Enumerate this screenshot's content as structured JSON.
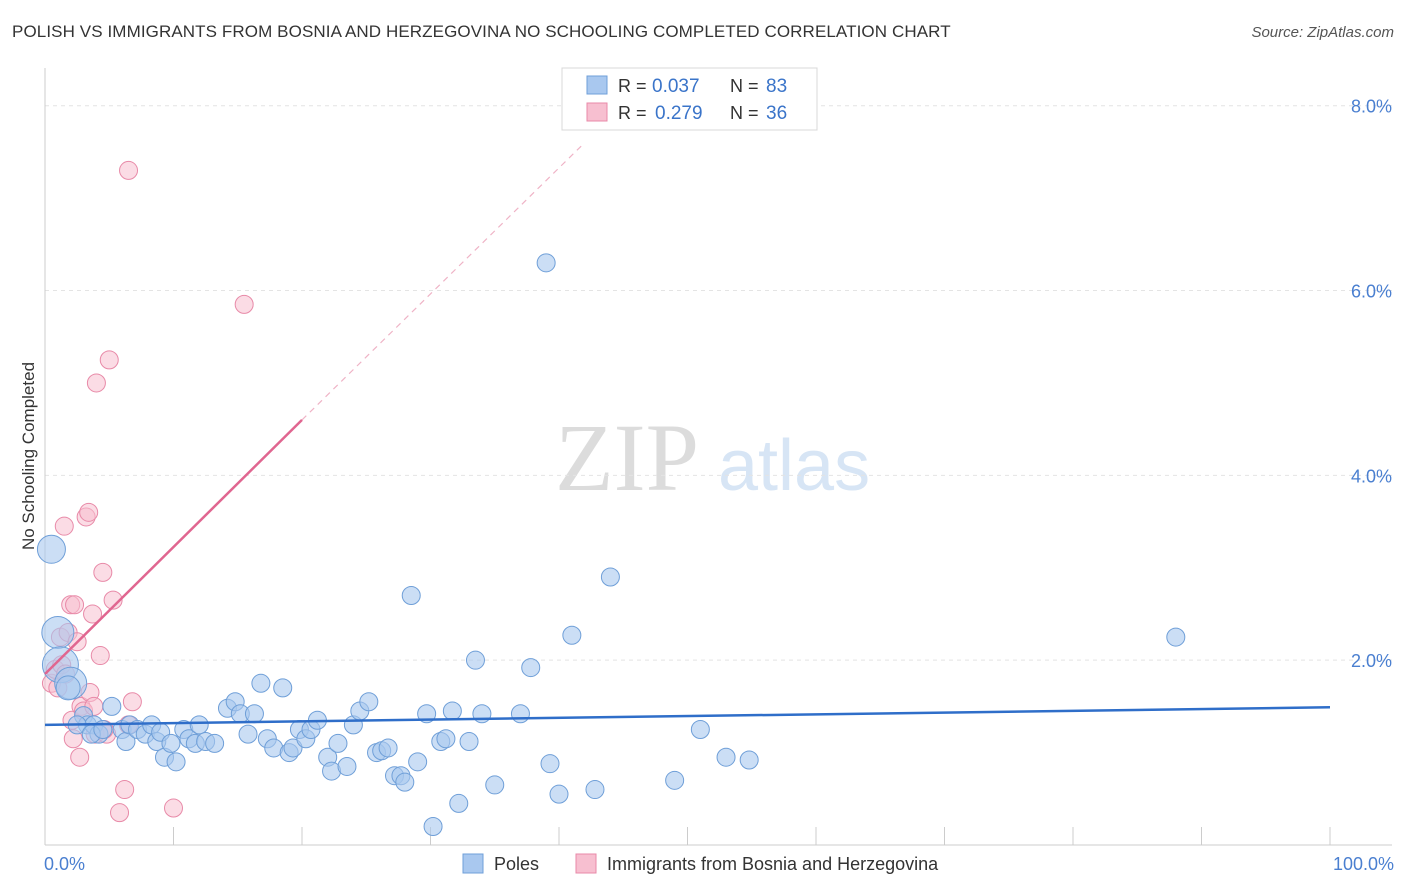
{
  "title": "POLISH VS IMMIGRANTS FROM BOSNIA AND HERZEGOVINA NO SCHOOLING COMPLETED CORRELATION CHART",
  "source": "Source: ZipAtlas.com",
  "watermark": {
    "zip": "ZIP",
    "atlas": "atlas"
  },
  "colors": {
    "blue_fill": "#a9c8ef",
    "blue_stroke": "#6f9fd8",
    "blue_line": "#2f6ec9",
    "pink_fill": "#f7bfd0",
    "pink_stroke": "#e88aa8",
    "pink_line": "#e06690",
    "axis_text": "#4a7fd0"
  },
  "legend_box": {
    "rows": [
      {
        "r_label": "R =",
        "r_value": "0.037",
        "n_label": "N =",
        "n_value": "83"
      },
      {
        "r_label": "R =",
        "r_value": "0.279",
        "n_label": "N =",
        "n_value": "36"
      }
    ]
  },
  "chart_data": {
    "type": "scatter",
    "xlabel": "",
    "ylabel": "No Schooling Completed",
    "xlim": [
      0,
      100
    ],
    "ylim": [
      0,
      8.3
    ],
    "x_tick_labels": [
      "0.0%",
      "100.0%"
    ],
    "y_ticks": [
      2,
      4,
      6,
      8
    ],
    "y_tick_labels": [
      "2.0%",
      "4.0%",
      "6.0%",
      "8.0%"
    ],
    "grid": true,
    "legend_position": "bottom",
    "series": [
      {
        "name": "Poles",
        "color": "#a9c8ef",
        "trend": {
          "x": [
            0,
            100
          ],
          "y": [
            1.3,
            1.49
          ]
        },
        "points": [
          [
            0.5,
            3.2,
            14
          ],
          [
            1.0,
            2.3,
            16
          ],
          [
            1.2,
            1.95,
            18
          ],
          [
            2.0,
            1.75,
            16
          ],
          [
            3.0,
            1.4,
            9
          ],
          [
            3.3,
            1.3,
            9
          ],
          [
            3.8,
            1.3,
            9
          ],
          [
            4.2,
            1.2,
            9
          ],
          [
            5.2,
            1.5,
            9
          ],
          [
            6.0,
            1.25,
            9
          ],
          [
            6.3,
            1.12,
            9
          ],
          [
            6.6,
            1.3,
            9
          ],
          [
            7.2,
            1.25,
            9
          ],
          [
            7.8,
            1.2,
            9
          ],
          [
            8.3,
            1.3,
            9
          ],
          [
            8.7,
            1.12,
            9
          ],
          [
            9.0,
            1.22,
            9
          ],
          [
            9.3,
            0.95,
            9
          ],
          [
            9.8,
            1.1,
            9
          ],
          [
            10.2,
            0.9,
            9
          ],
          [
            10.8,
            1.25,
            9
          ],
          [
            11.2,
            1.15,
            9
          ],
          [
            11.7,
            1.1,
            9
          ],
          [
            12.0,
            1.3,
            9
          ],
          [
            12.5,
            1.12,
            9
          ],
          [
            13.2,
            1.1,
            9
          ],
          [
            14.2,
            1.48,
            9
          ],
          [
            14.8,
            1.55,
            9
          ],
          [
            15.2,
            1.42,
            9
          ],
          [
            15.8,
            1.2,
            9
          ],
          [
            16.3,
            1.42,
            9
          ],
          [
            16.8,
            1.75,
            9
          ],
          [
            17.3,
            1.15,
            9
          ],
          [
            17.8,
            1.05,
            9
          ],
          [
            18.5,
            1.7,
            9
          ],
          [
            19.0,
            1.0,
            9
          ],
          [
            19.3,
            1.05,
            9
          ],
          [
            19.8,
            1.25,
            9
          ],
          [
            20.3,
            1.15,
            9
          ],
          [
            20.7,
            1.25,
            9
          ],
          [
            21.2,
            1.35,
            9
          ],
          [
            22.0,
            0.95,
            9
          ],
          [
            22.3,
            0.8,
            9
          ],
          [
            22.8,
            1.1,
            9
          ],
          [
            23.5,
            0.85,
            9
          ],
          [
            24.0,
            1.3,
            9
          ],
          [
            24.5,
            1.45,
            9
          ],
          [
            25.2,
            1.55,
            9
          ],
          [
            25.8,
            1.0,
            9
          ],
          [
            26.2,
            1.02,
            9
          ],
          [
            26.7,
            1.05,
            9
          ],
          [
            27.2,
            0.75,
            9
          ],
          [
            27.7,
            0.75,
            9
          ],
          [
            28.0,
            0.68,
            9
          ],
          [
            28.5,
            2.7,
            9
          ],
          [
            29.0,
            0.9,
            9
          ],
          [
            29.7,
            1.42,
            9
          ],
          [
            30.2,
            0.2,
            9
          ],
          [
            30.8,
            1.12,
            9
          ],
          [
            31.2,
            1.15,
            9
          ],
          [
            31.7,
            1.45,
            9
          ],
          [
            32.2,
            0.45,
            9
          ],
          [
            33.0,
            1.12,
            9
          ],
          [
            33.5,
            2.0,
            9
          ],
          [
            34.0,
            1.42,
            9
          ],
          [
            35.0,
            0.65,
            9
          ],
          [
            37.0,
            1.42,
            9
          ],
          [
            37.8,
            1.92,
            9
          ],
          [
            39.0,
            6.3,
            9
          ],
          [
            39.3,
            0.88,
            9
          ],
          [
            40.0,
            0.55,
            9
          ],
          [
            41.0,
            2.27,
            9
          ],
          [
            42.8,
            0.6,
            9
          ],
          [
            44.0,
            2.9,
            9
          ],
          [
            49.0,
            0.7,
            9
          ],
          [
            51.0,
            1.25,
            9
          ],
          [
            53.0,
            0.95,
            9
          ],
          [
            54.8,
            0.92,
            9
          ],
          [
            88.0,
            2.25,
            9
          ],
          [
            1.8,
            1.7,
            12
          ],
          [
            2.5,
            1.3,
            9
          ],
          [
            3.6,
            1.2,
            9
          ],
          [
            4.5,
            1.25,
            9
          ]
        ]
      },
      {
        "name": "Immigrants from Bosnia and Herzegovina",
        "color": "#f7bfd0",
        "trend": {
          "x": [
            0,
            20
          ],
          "y": [
            1.85,
            4.6
          ]
        },
        "trend_dashed": {
          "x": [
            20,
            42
          ],
          "y": [
            4.6,
            7.6
          ]
        },
        "points": [
          [
            0.5,
            1.75,
            9
          ],
          [
            0.8,
            1.9,
            9
          ],
          [
            1.0,
            1.7,
            9
          ],
          [
            1.2,
            2.25,
            9
          ],
          [
            1.3,
            1.95,
            9
          ],
          [
            1.5,
            3.45,
            9
          ],
          [
            1.6,
            1.85,
            9
          ],
          [
            1.8,
            2.3,
            9
          ],
          [
            2.0,
            2.6,
            9
          ],
          [
            2.1,
            1.35,
            9
          ],
          [
            2.2,
            1.15,
            9
          ],
          [
            2.3,
            2.6,
            9
          ],
          [
            2.5,
            2.2,
            9
          ],
          [
            2.7,
            0.95,
            9
          ],
          [
            2.8,
            1.5,
            9
          ],
          [
            3.0,
            1.45,
            9
          ],
          [
            3.2,
            3.55,
            9
          ],
          [
            3.4,
            3.6,
            9
          ],
          [
            3.5,
            1.65,
            9
          ],
          [
            3.7,
            2.5,
            9
          ],
          [
            3.8,
            1.5,
            9
          ],
          [
            3.9,
            1.2,
            9
          ],
          [
            4.0,
            5.0,
            9
          ],
          [
            4.3,
            2.05,
            9
          ],
          [
            4.5,
            2.95,
            9
          ],
          [
            4.8,
            1.2,
            9
          ],
          [
            4.6,
            1.25,
            9
          ],
          [
            5.0,
            5.25,
            9
          ],
          [
            5.3,
            2.65,
            9
          ],
          [
            5.8,
            0.35,
            9
          ],
          [
            6.2,
            0.6,
            9
          ],
          [
            6.5,
            1.3,
            9
          ],
          [
            6.5,
            7.3,
            9
          ],
          [
            6.8,
            1.55,
            9
          ],
          [
            10.0,
            0.4,
            9
          ],
          [
            15.5,
            5.85,
            9
          ]
        ]
      }
    ]
  }
}
